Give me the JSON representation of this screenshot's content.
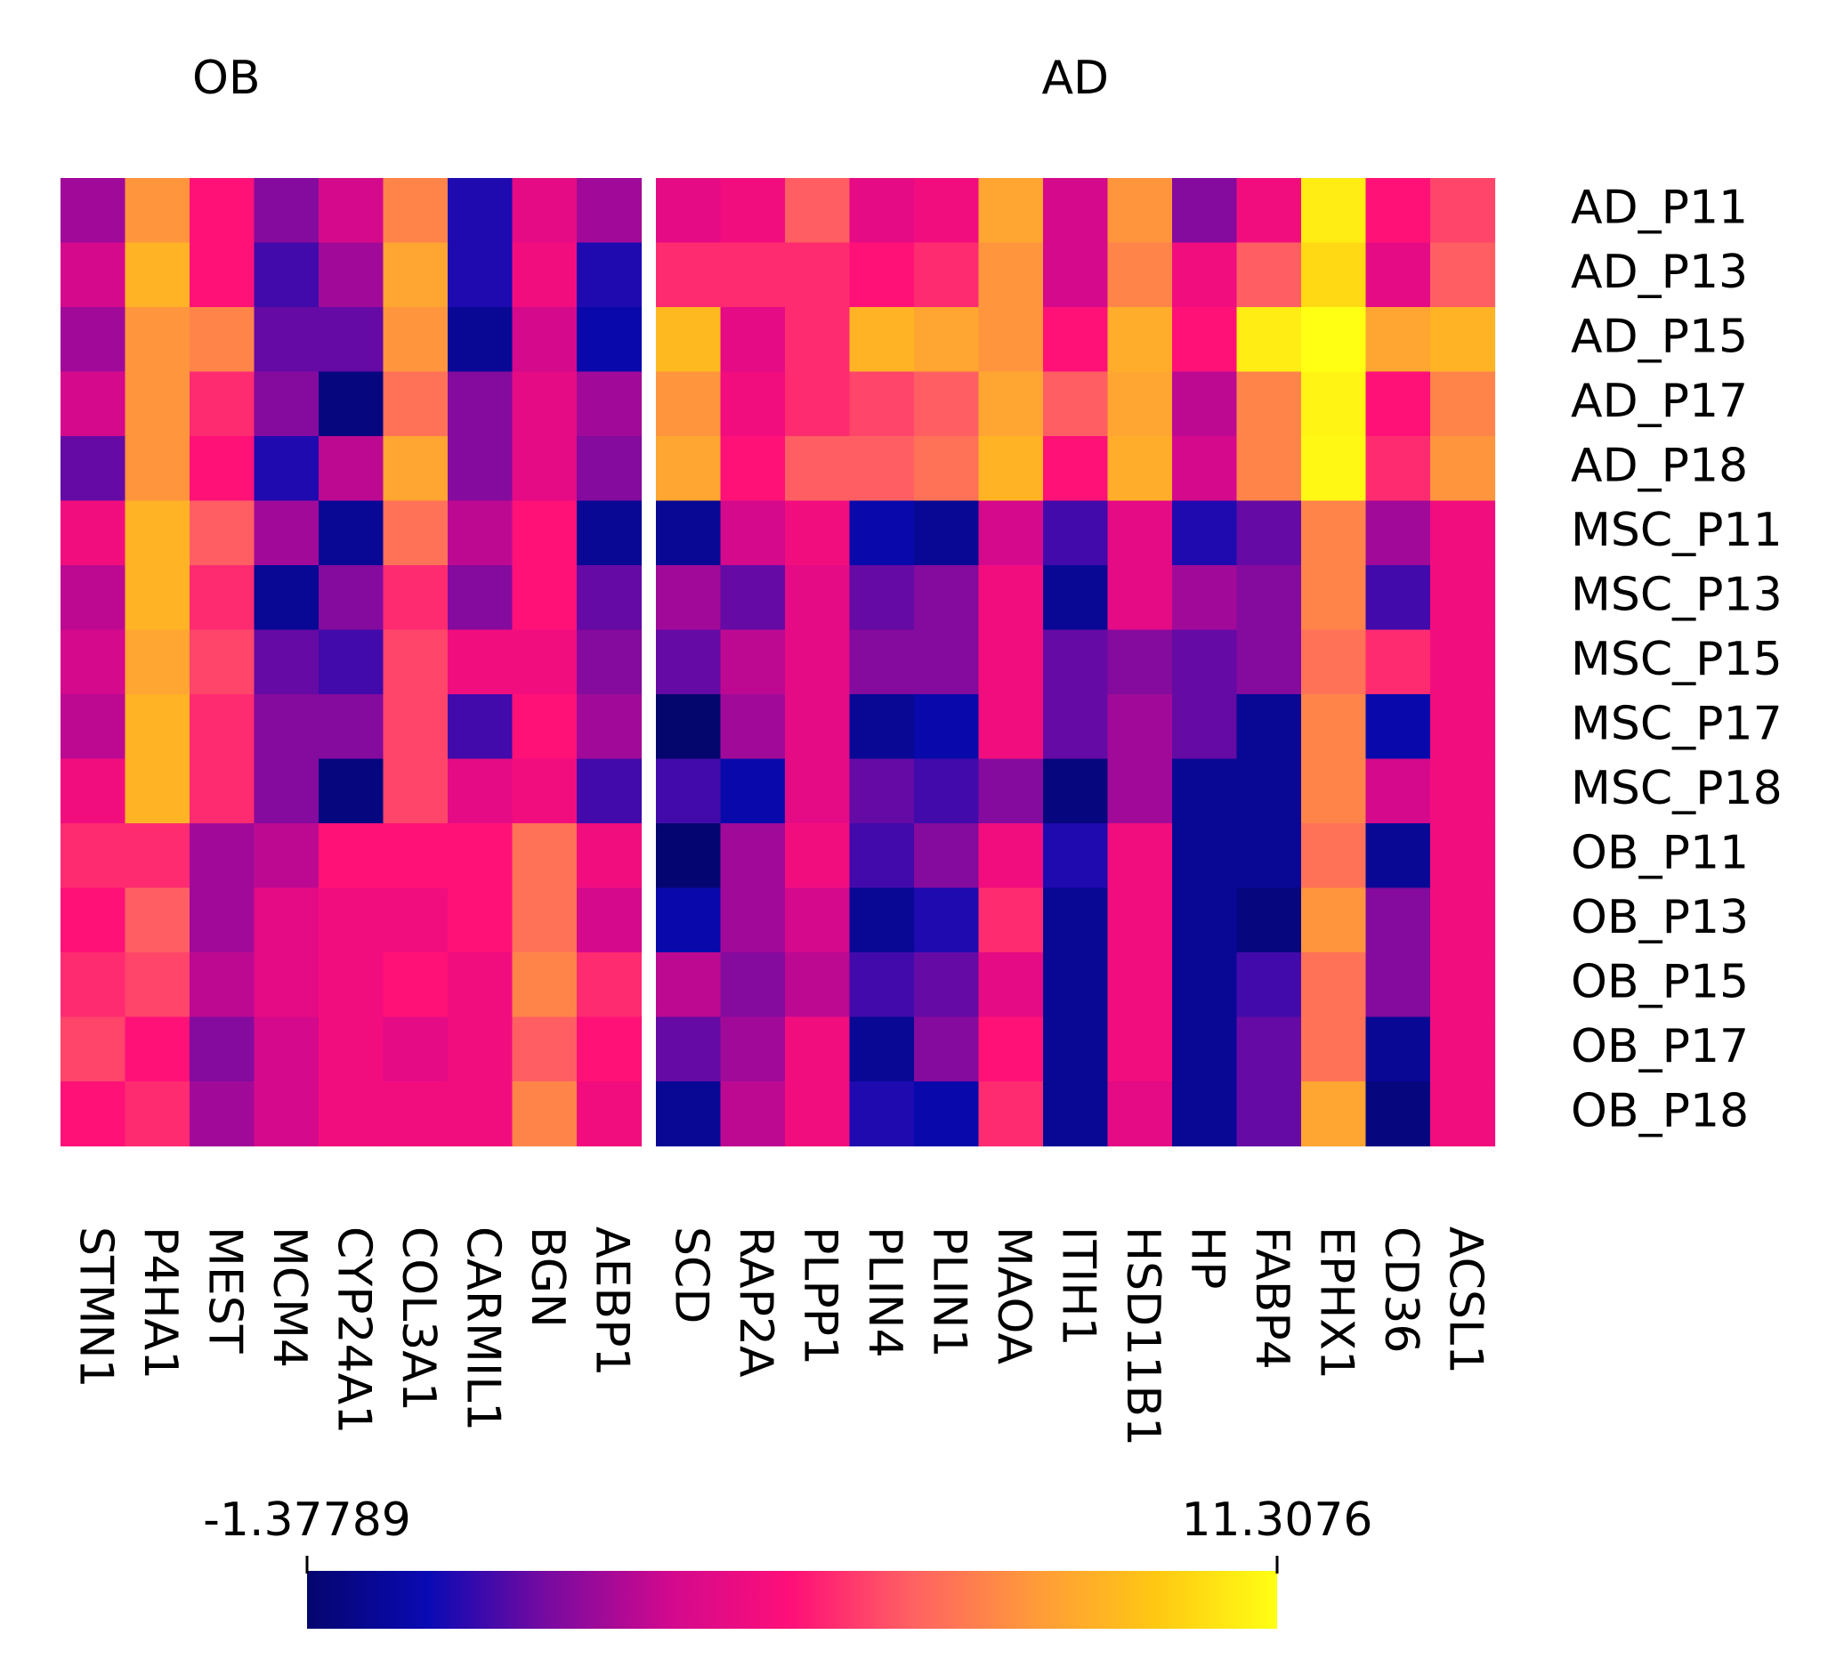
{
  "chart_data": {
    "type": "heatmap",
    "title": "",
    "xlabel": "",
    "ylabel": "",
    "groups": [
      {
        "name": "OB",
        "columns": [
          "STMN1",
          "P4HA1",
          "MEST",
          "MCM4",
          "CYP24A1",
          "COL3A1",
          "CARMIL1",
          "BGN",
          "AEBP1"
        ]
      },
      {
        "name": "AD",
        "columns": [
          "SCD",
          "RAP2A",
          "PLPP1",
          "PLIN4",
          "PLIN1",
          "MAOA",
          "ITIH1",
          "HSD11B1",
          "HP",
          "FABP4",
          "EPHX1",
          "CD36",
          "ACSL1"
        ]
      }
    ],
    "rows": [
      "AD_P11",
      "AD_P13",
      "AD_P15",
      "AD_P17",
      "AD_P18",
      "MSC_P11",
      "MSC_P13",
      "MSC_P15",
      "MSC_P17",
      "MSC_P18",
      "OB_P11",
      "OB_P13",
      "OB_P15",
      "OB_P17",
      "OB_P18"
    ],
    "values": [
      [
        2.5,
        8.0,
        5.0,
        2.0,
        3.5,
        7.5,
        0.5,
        4.0,
        2.5,
        4.0,
        4.5,
        6.5,
        4.0,
        4.5,
        8.5,
        3.5,
        8.0,
        2.0,
        4.5,
        10.8,
        5.0,
        6.0
      ],
      [
        3.5,
        9.0,
        5.0,
        1.0,
        2.5,
        8.5,
        0.5,
        4.5,
        0.5,
        5.5,
        5.5,
        5.5,
        5.0,
        5.5,
        8.0,
        3.5,
        7.5,
        4.5,
        6.5,
        10.2,
        4.0,
        6.5
      ],
      [
        2.5,
        8.0,
        7.5,
        1.5,
        1.5,
        8.0,
        -0.5,
        3.5,
        0.0,
        9.2,
        4.0,
        5.5,
        9.0,
        8.5,
        8.0,
        5.0,
        8.8,
        5.0,
        10.8,
        11.3,
        8.5,
        9.0
      ],
      [
        3.5,
        8.0,
        5.5,
        2.0,
        -1.0,
        7.0,
        2.0,
        4.0,
        2.5,
        8.0,
        4.5,
        5.5,
        6.0,
        6.5,
        8.5,
        6.5,
        8.5,
        3.0,
        7.5,
        11.0,
        5.0,
        7.5
      ],
      [
        1.5,
        8.0,
        5.0,
        0.5,
        3.0,
        8.5,
        2.0,
        4.0,
        2.0,
        8.5,
        5.0,
        6.5,
        6.5,
        7.0,
        9.0,
        5.0,
        8.8,
        3.5,
        7.5,
        11.1,
        5.5,
        8.0
      ],
      [
        4.5,
        9.0,
        6.5,
        2.5,
        -0.5,
        7.0,
        3.0,
        5.0,
        -0.5,
        -0.5,
        3.5,
        4.5,
        0.0,
        -0.5,
        3.5,
        1.0,
        4.0,
        0.5,
        1.5,
        7.5,
        2.5,
        4.5
      ],
      [
        3.0,
        9.0,
        5.5,
        -0.5,
        2.0,
        5.5,
        2.0,
        5.0,
        1.5,
        2.5,
        1.5,
        4.0,
        1.5,
        2.0,
        4.5,
        -0.5,
        4.0,
        2.5,
        2.0,
        7.5,
        1.0,
        4.5
      ],
      [
        3.5,
        8.5,
        6.0,
        1.5,
        1.0,
        6.0,
        4.5,
        4.5,
        2.0,
        1.5,
        3.0,
        4.0,
        2.0,
        2.0,
        4.5,
        1.5,
        2.0,
        1.5,
        2.0,
        7.0,
        5.5,
        4.5
      ],
      [
        3.0,
        9.0,
        5.5,
        2.0,
        2.0,
        6.0,
        1.0,
        5.0,
        2.5,
        -1.4,
        2.5,
        4.0,
        -0.5,
        0.0,
        4.5,
        1.5,
        2.5,
        1.5,
        -0.5,
        7.5,
        0.0,
        4.5
      ],
      [
        4.5,
        9.0,
        5.5,
        2.0,
        -1.0,
        6.0,
        4.0,
        4.5,
        1.0,
        1.0,
        0.0,
        4.0,
        1.5,
        1.0,
        2.0,
        -1.0,
        2.5,
        -0.5,
        -0.5,
        7.5,
        3.5,
        4.5
      ],
      [
        5.5,
        5.5,
        2.5,
        3.0,
        5.0,
        5.0,
        5.0,
        7.0,
        4.5,
        -1.3,
        2.5,
        4.5,
        1.0,
        2.0,
        4.5,
        0.5,
        4.5,
        -0.5,
        -0.5,
        7.0,
        -0.5,
        4.5
      ],
      [
        5.0,
        6.5,
        2.5,
        4.0,
        4.5,
        4.5,
        5.0,
        7.0,
        3.5,
        0.0,
        2.5,
        3.5,
        -0.5,
        0.5,
        5.5,
        -0.5,
        4.5,
        -0.5,
        -1.0,
        8.0,
        2.0,
        4.5
      ],
      [
        5.5,
        6.0,
        3.0,
        4.0,
        4.5,
        5.0,
        4.5,
        7.5,
        5.5,
        3.0,
        2.0,
        3.0,
        1.0,
        1.5,
        4.0,
        -0.5,
        4.5,
        -0.5,
        1.0,
        7.0,
        2.0,
        4.5
      ],
      [
        6.0,
        5.0,
        2.0,
        3.5,
        4.5,
        4.0,
        4.5,
        6.5,
        5.0,
        1.5,
        2.5,
        4.5,
        -0.5,
        2.0,
        5.0,
        -0.5,
        4.5,
        -0.5,
        1.5,
        7.0,
        -0.5,
        4.5
      ],
      [
        5.0,
        5.5,
        2.5,
        3.5,
        4.5,
        4.5,
        4.5,
        7.5,
        4.5,
        -0.5,
        3.0,
        4.5,
        0.5,
        0.0,
        5.5,
        -0.5,
        4.0,
        -0.5,
        1.5,
        8.5,
        -1.0,
        4.5
      ]
    ],
    "colorscale": {
      "min": -1.37789,
      "max": 11.3076,
      "min_label": "-1.37789",
      "max_label": "11.3076",
      "stops": [
        "#05056e",
        "#0a0ab4",
        "#7a0aa0",
        "#d2098e",
        "#ff0f78",
        "#ff6262",
        "#ff9a3a",
        "#ffc813",
        "#ffff14"
      ]
    },
    "legend": "bottom"
  }
}
